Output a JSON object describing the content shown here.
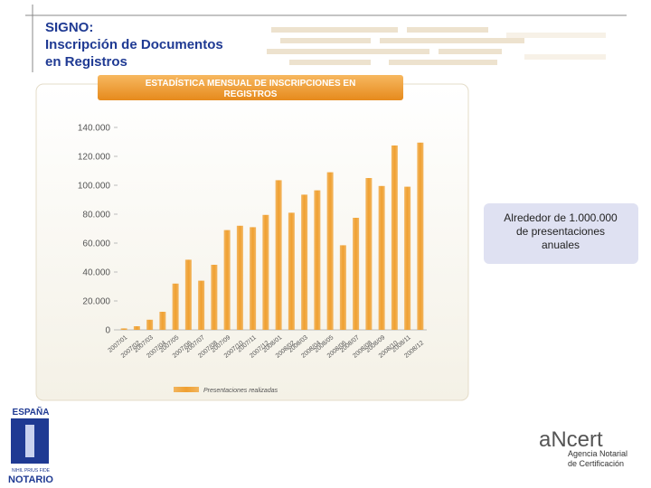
{
  "slide": {
    "title_lines": [
      "SIGNO:",
      "Inscripción de Documentos",
      "en Registros"
    ],
    "note_lines": [
      "Alrededor de 1.000.000",
      "de presentaciones",
      "anuales"
    ],
    "left_logo": {
      "top": "ESPAÑA",
      "motto": "NIHIL PRIUS FIDE",
      "bottom": "NOTARIO"
    },
    "right_logo": {
      "name": "aNcert",
      "line1": "Agencia Notarial",
      "line2": "de Certificación"
    }
  },
  "chart_data": {
    "type": "bar",
    "title_lines": [
      "ESTADÍSTICA MENSUAL DE INSCRIPCIONES EN",
      "REGISTROS"
    ],
    "categories": [
      "2007/01",
      "2007/02",
      "2007/03",
      "2007/04",
      "2007/05",
      "2007/06",
      "2007/07",
      "2007/08",
      "2007/09",
      "2007/10",
      "2007/11",
      "2007/12",
      "2008/01",
      "2008/02",
      "2008/03",
      "2008/04",
      "2008/05",
      "2008/06",
      "2008/07",
      "2008/08",
      "2008/09",
      "2008/10",
      "2008/11",
      "2008/12"
    ],
    "series": [
      {
        "name": "Presentaciones realizadas",
        "color": "#f0a030",
        "values": [
          1000,
          2500,
          7000,
          12500,
          32000,
          48500,
          34000,
          45000,
          69000,
          72000,
          71000,
          79500,
          103500,
          81000,
          93500,
          96500,
          109000,
          58500,
          77500,
          105000,
          99500,
          127500,
          99000,
          129500
        ]
      }
    ],
    "ylim": [
      0,
      140000
    ],
    "yticks": [
      0,
      {
        "value": 20000,
        "label": "20.000"
      },
      {
        "value": 40000,
        "label": "40.000"
      },
      {
        "value": 60000,
        "label": "60.000"
      },
      {
        "value": 80000,
        "label": "80.000"
      },
      {
        "value": 100000,
        "label": "100.000"
      },
      {
        "value": 120000,
        "label": "120.000"
      },
      {
        "value": 140000,
        "label": "140.000"
      }
    ],
    "grid": false,
    "legend": "bottom"
  }
}
